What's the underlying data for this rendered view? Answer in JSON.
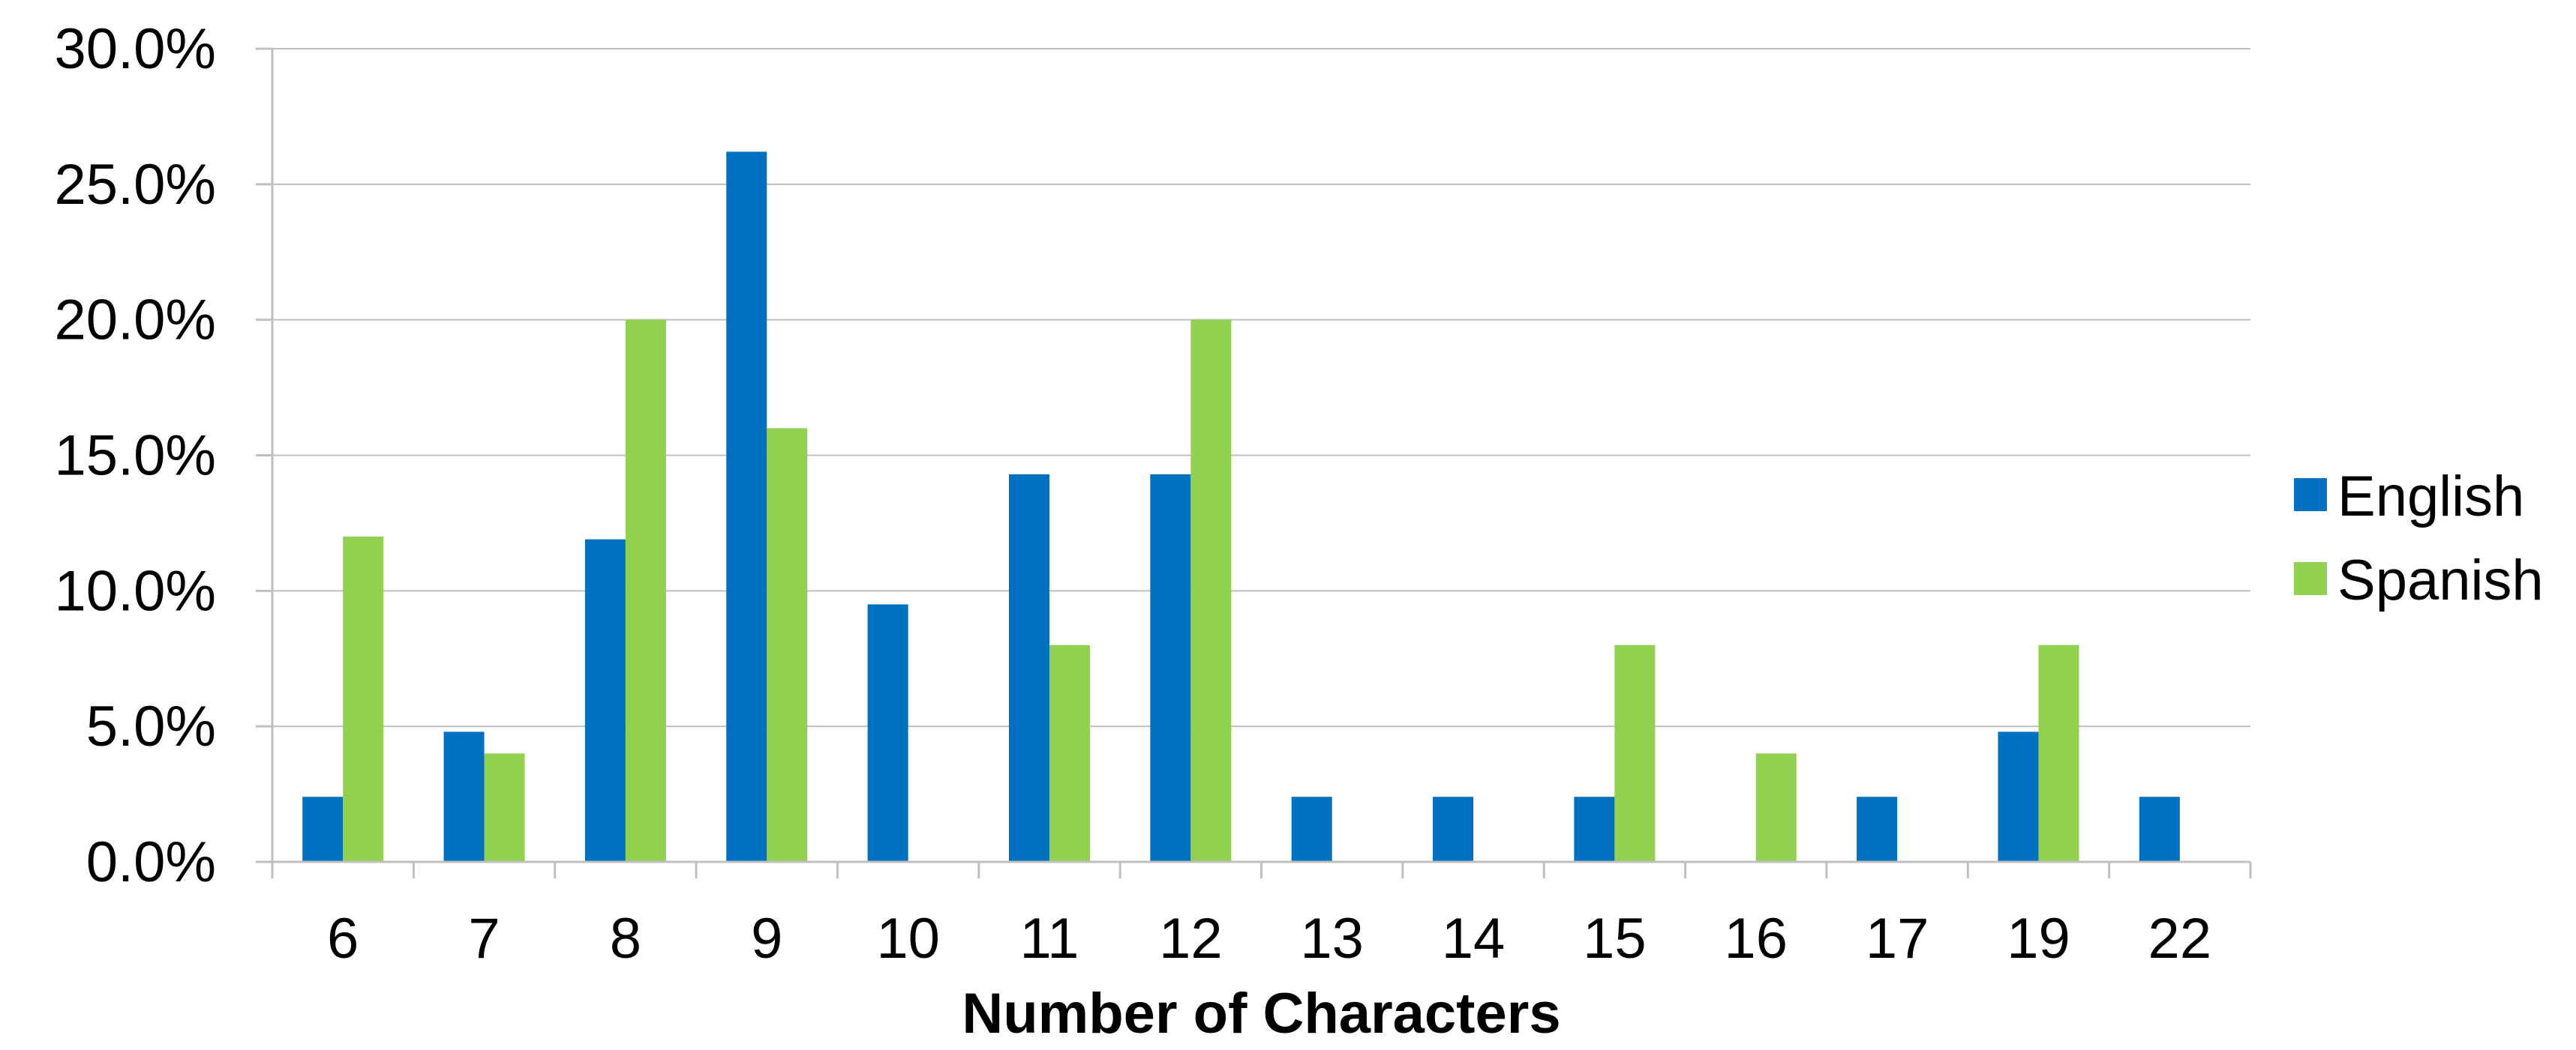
{
  "chart_data": {
    "type": "bar",
    "title": "",
    "xlabel": "Number of Characters",
    "ylabel": "",
    "categories": [
      "6",
      "7",
      "8",
      "9",
      "10",
      "11",
      "12",
      "13",
      "14",
      "15",
      "16",
      "17",
      "19",
      "22"
    ],
    "series": [
      {
        "name": "English",
        "color": "#0070C0",
        "values": [
          2.4,
          4.8,
          11.9,
          26.2,
          9.5,
          14.3,
          14.3,
          2.4,
          2.4,
          2.4,
          0,
          2.4,
          4.8,
          2.4
        ]
      },
      {
        "name": "Spanish",
        "color": "#92D050",
        "values": [
          12.0,
          4.0,
          20.0,
          16.0,
          0,
          8.0,
          20.0,
          0,
          0,
          8.0,
          4.0,
          0,
          8.0,
          0
        ]
      }
    ],
    "ylim": [
      0,
      30
    ],
    "yticks": [
      "0.0%",
      "5.0%",
      "10.0%",
      "15.0%",
      "20.0%",
      "25.0%",
      "30.0%"
    ],
    "ytick_values": [
      0,
      5,
      10,
      15,
      20,
      25,
      30
    ],
    "grid": true,
    "legend_position": "right",
    "colors": {
      "gridline": "#BFBFBF",
      "axis": "#BFBFBF",
      "title": "#B0325E"
    }
  }
}
